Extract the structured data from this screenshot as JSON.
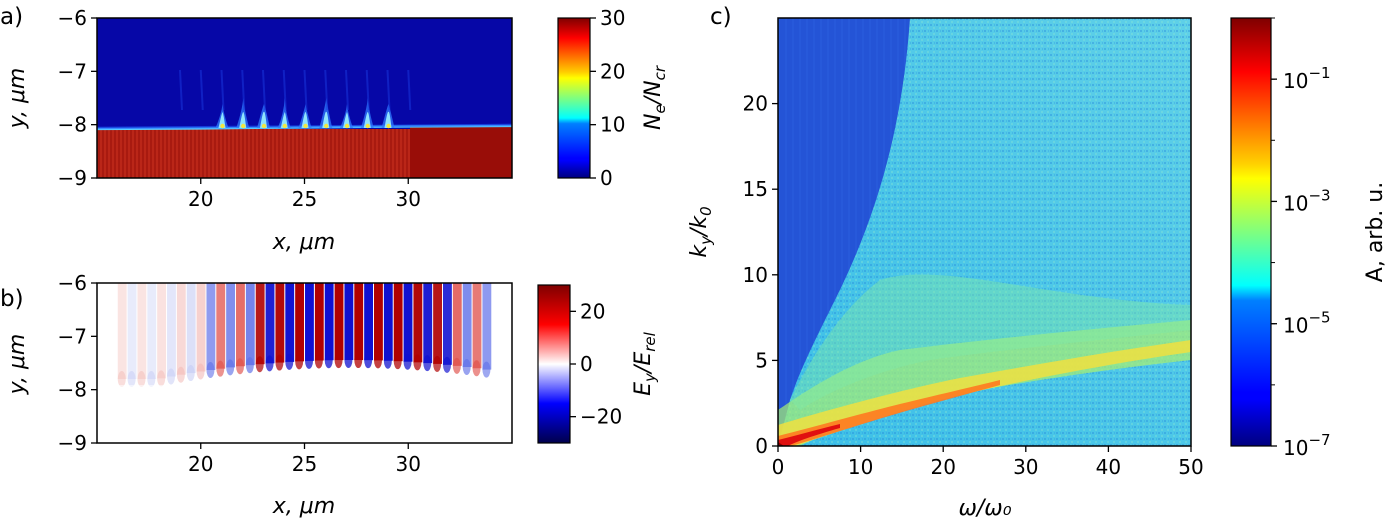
{
  "chart_data": [
    {
      "panel_label": "a)",
      "type": "heatmap",
      "xlabel": "x, μm",
      "ylabel": "y, μm",
      "xlim": [
        15,
        35
      ],
      "ylim": [
        -9,
        -6
      ],
      "xticks": [
        20,
        25,
        30
      ],
      "yticks": [
        -6,
        -7,
        -8,
        -9
      ],
      "colorbar": {
        "label": "N_e/N_cr",
        "label_main": "N",
        "label_sub1": "e",
        "label_mid": "/N",
        "label_sub2": "cr",
        "colormap": "jet",
        "range": [
          0,
          30
        ],
        "ticks": [
          0,
          10,
          20,
          30
        ]
      },
      "description_values": {
        "surface_y": -8.05,
        "spikes_x": [
          21,
          22,
          23,
          24,
          25,
          26,
          27,
          28,
          29
        ]
      }
    },
    {
      "panel_label": "b)",
      "type": "heatmap",
      "xlabel": "x, μm",
      "ylabel": "y, μm",
      "xlim": [
        15,
        35
      ],
      "ylim": [
        -9,
        -6
      ],
      "xticks": [
        20,
        25,
        30
      ],
      "yticks": [
        -6,
        -7,
        -8,
        -9
      ],
      "colorbar": {
        "label": "E_y/E_rel",
        "label_main": "E",
        "label_sub1": "y",
        "label_mid": "/E",
        "label_sub2": "rel",
        "colormap": "seismic",
        "range": [
          -30,
          30
        ],
        "ticks": [
          20,
          0,
          -20
        ]
      }
    },
    {
      "panel_label": "c)",
      "type": "heatmap",
      "xlabel": "ω/ω₀",
      "ylabel": "k_y/k_0",
      "xlim": [
        0,
        50
      ],
      "ylim": [
        0,
        25
      ],
      "xticks": [
        0,
        10,
        20,
        30,
        40,
        50
      ],
      "yticks": [
        0,
        5,
        10,
        15,
        20
      ],
      "colorbar": {
        "label": "A, arb. u.",
        "colormap": "jet",
        "scale": "log",
        "range": [
          1e-07,
          1
        ],
        "ticks": [
          "10",
          "10",
          "10",
          "10"
        ],
        "tick_exponents": [
          "-1",
          "-3",
          "-5",
          "-7"
        ]
      }
    }
  ],
  "colors": {
    "jet_low": "#00007f",
    "jet_high": "#7f0000",
    "seismic_low": "#00004c",
    "seismic_high": "#7f0000"
  }
}
